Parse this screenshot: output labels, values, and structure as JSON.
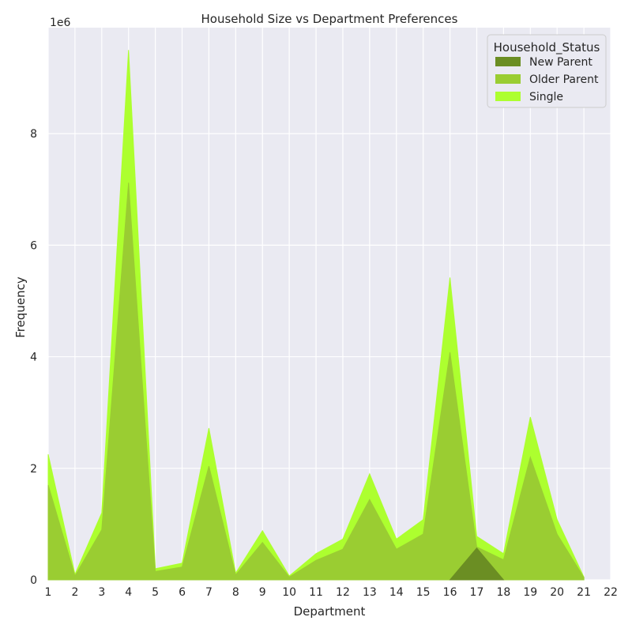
{
  "chart_data": {
    "type": "area",
    "stacked": false,
    "title": "Household Size vs Department Preferences",
    "xlabel": "Department",
    "ylabel": "Frequency",
    "y_offset_text": "1e6",
    "xlim": [
      1,
      22
    ],
    "ylim": [
      0,
      9.9
    ],
    "x_ticks": [
      1,
      2,
      3,
      4,
      5,
      6,
      7,
      8,
      9,
      10,
      11,
      12,
      13,
      14,
      15,
      16,
      17,
      18,
      19,
      20,
      21,
      22
    ],
    "y_ticks": [
      0,
      2,
      4,
      6,
      8
    ],
    "grid": true,
    "legend": {
      "title": "Household_Status",
      "position": "top-right"
    },
    "series": [
      {
        "name": "Single",
        "color": "#adff2f",
        "x": [
          1,
          2,
          3,
          4,
          5,
          6,
          7,
          8,
          9,
          10,
          11,
          12,
          13,
          14,
          15,
          16,
          17,
          18,
          19,
          20,
          21
        ],
        "values": [
          2.25,
          0.1,
          1.2,
          9.5,
          0.2,
          0.3,
          2.72,
          0.12,
          0.88,
          0.07,
          0.47,
          0.73,
          1.9,
          0.73,
          1.08,
          5.42,
          0.78,
          0.47,
          2.92,
          1.08,
          0.05
        ]
      },
      {
        "name": "Older Parent",
        "color": "#9acd32",
        "x": [
          1,
          2,
          3,
          4,
          5,
          6,
          7,
          8,
          9,
          10,
          11,
          12,
          13,
          14,
          15,
          16,
          17,
          18,
          19,
          20,
          21
        ],
        "values": [
          1.7,
          0.07,
          0.9,
          7.12,
          0.15,
          0.23,
          2.04,
          0.09,
          0.67,
          0.05,
          0.35,
          0.55,
          1.44,
          0.55,
          0.82,
          4.08,
          0.59,
          0.36,
          2.2,
          0.82,
          0.04
        ]
      },
      {
        "name": "New Parent",
        "color": "#6b8e23",
        "x": [
          16,
          17,
          18
        ],
        "values": [
          0.0,
          0.57,
          0.0
        ]
      }
    ]
  }
}
